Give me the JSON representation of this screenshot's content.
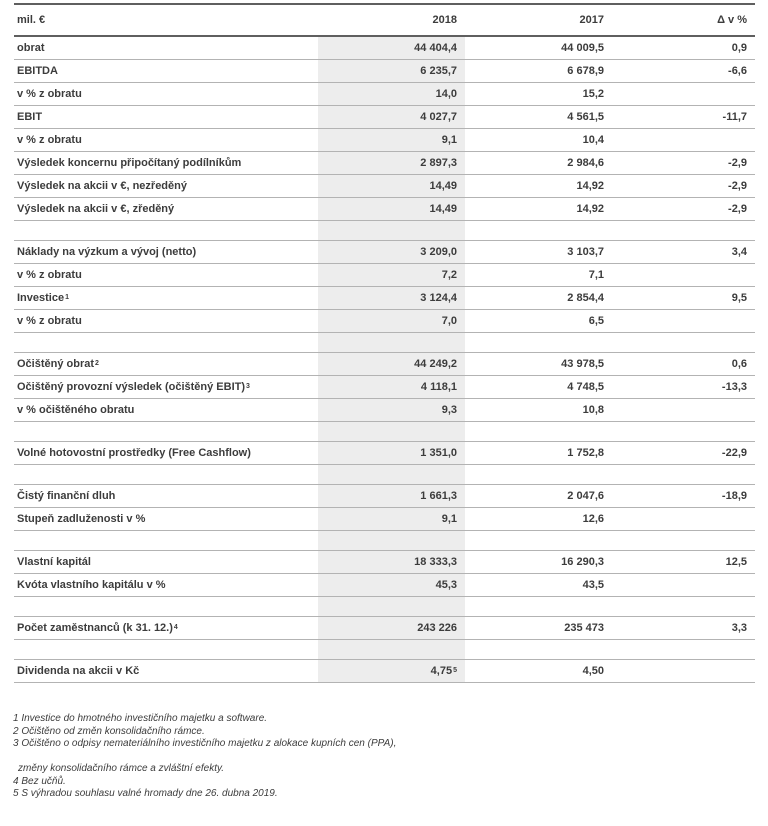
{
  "table": {
    "header": {
      "unit_label": "mil. €",
      "col_2018": "2018",
      "col_2017": "2017",
      "col_delta": "Δ v %"
    },
    "rows": [
      {
        "label": "obrat",
        "v2018": "44 404,4",
        "v2017": "44 009,5",
        "delta": "0,9"
      },
      {
        "label": "EBITDA",
        "v2018": "6 235,7",
        "v2017": "6 678,9",
        "delta": "-6,6"
      },
      {
        "label": "v % z obratu",
        "v2018": "14,0",
        "v2017": "15,2",
        "delta": ""
      },
      {
        "label": "EBIT",
        "v2018": "4 027,7",
        "v2017": "4 561,5",
        "delta": "-11,7"
      },
      {
        "label": "v % z obratu",
        "v2018": "9,1",
        "v2017": "10,4",
        "delta": ""
      },
      {
        "label": "Výsledek koncernu připočítaný podílníkům",
        "v2018": "2 897,3",
        "v2017": "2 984,6",
        "delta": "-2,9"
      },
      {
        "label": "Výsledek na akcii v €, nezředěný",
        "v2018": "14,49",
        "v2017": "14,92",
        "delta": "-2,9"
      },
      {
        "label": "Výsledek na akcii v €, zředěný",
        "v2018": "14,49",
        "v2017": "14,92",
        "delta": "-2,9"
      },
      {
        "type": "spacer"
      },
      {
        "label": "Náklady na výzkum a vývoj (netto)",
        "v2018": "3 209,0",
        "v2017": "3 103,7",
        "delta": "3,4"
      },
      {
        "label": "v % z obratu",
        "v2018": "7,2",
        "v2017": "7,1",
        "delta": ""
      },
      {
        "label": "Investice",
        "label_sup": "1",
        "v2018": "3 124,4",
        "v2017": "2 854,4",
        "delta": "9,5"
      },
      {
        "label": "v % z obratu",
        "v2018": "7,0",
        "v2017": "6,5",
        "delta": ""
      },
      {
        "type": "spacer"
      },
      {
        "label": "Očištěný obrat",
        "label_sup": "2",
        "v2018": "44 249,2",
        "v2017": "43 978,5",
        "delta": "0,6"
      },
      {
        "label": "Očištěný provozní výsledek (očištěný EBIT)",
        "label_sup": "3",
        "v2018": "4 118,1",
        "v2017": "4 748,5",
        "delta": "-13,3"
      },
      {
        "label": "v % očištěného obratu",
        "v2018": "9,3",
        "v2017": "10,8",
        "delta": ""
      },
      {
        "type": "spacer"
      },
      {
        "label": "Volné hotovostní prostředky (Free Cashflow)",
        "v2018": "1 351,0",
        "v2017": "1 752,8",
        "delta": "-22,9"
      },
      {
        "type": "spacer"
      },
      {
        "label": "Čistý finanční dluh",
        "v2018": "1 661,3",
        "v2017": "2 047,6",
        "delta": "-18,9"
      },
      {
        "label": "Stupeň zadluženosti v %",
        "v2018": "9,1",
        "v2017": "12,6",
        "delta": ""
      },
      {
        "type": "spacer"
      },
      {
        "label": "Vlastní kapitál",
        "v2018": "18 333,3",
        "v2017": "16 290,3",
        "delta": "12,5"
      },
      {
        "label": "Kvóta vlastního kapitálu v %",
        "v2018": "45,3",
        "v2017": "43,5",
        "delta": ""
      },
      {
        "type": "spacer"
      },
      {
        "label": "Počet zaměstnanců (k 31. 12.)",
        "label_sup": "4",
        "v2018": "243 226",
        "v2017": "235 473",
        "delta": "3,3"
      },
      {
        "type": "spacer"
      },
      {
        "label": "Dividenda na akcii v Kč",
        "v2018": "4,75",
        "v2018_sup": "5",
        "v2017": "4,50",
        "delta": ""
      }
    ]
  },
  "footnotes": [
    {
      "text": "1 Investice do hmotného investičního majetku a software."
    },
    {
      "text": "2 Očištěno od změn konsolidačního rámce."
    },
    {
      "text": "3 Očištěno o odpisy nemateriálního investičního majetku z alokace kupních cen (PPA),"
    },
    {
      "blank": true
    },
    {
      "text": "změny konsolidačního rámce a zvláštní efekty.",
      "indent": true
    },
    {
      "text": "4 Bez učňů."
    },
    {
      "text": "5 S výhradou souhlasu valné hromady dne 26. dubna 2019."
    }
  ],
  "colors": {
    "text": "#3c3c3c",
    "heavy_rule": "#5f5f5f",
    "light_rule": "#b3b3b3",
    "column_shading": "#ededed",
    "background": "#ffffff"
  }
}
